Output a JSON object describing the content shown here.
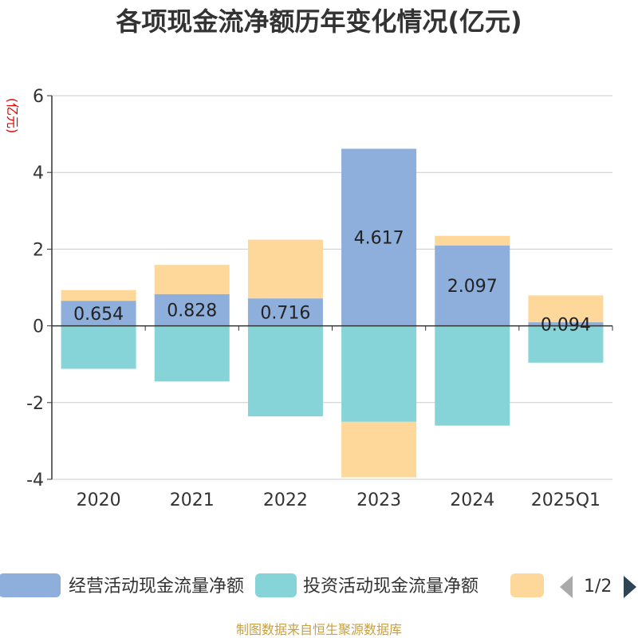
{
  "chart_data": {
    "type": "bar",
    "stacked": true,
    "title": "各项现金流净额历年变化情况(亿元)",
    "ylabel": "(亿元)",
    "categories": [
      "2020",
      "2021",
      "2022",
      "2023",
      "2024",
      "2025Q1"
    ],
    "ylim": [
      -4,
      6
    ],
    "yticks": [
      -4,
      -2,
      0,
      2,
      4,
      6
    ],
    "grid": true,
    "series": [
      {
        "name": "经营活动现金流量净额",
        "color": "#8eaedb",
        "values": [
          0.654,
          0.828,
          0.716,
          4.617,
          2.097,
          0.094
        ],
        "labels": [
          "0.654",
          "0.828",
          "0.716",
          "4.617",
          "2.097",
          "0.094"
        ]
      },
      {
        "name": "投资活动现金流量净额",
        "color": "#86d4d8",
        "values": [
          -1.12,
          -1.45,
          -2.36,
          -2.5,
          -2.6,
          -0.96
        ]
      },
      {
        "name": "",
        "color": "#fdd89a",
        "values": [
          0.28,
          0.76,
          1.53,
          -1.45,
          0.25,
          0.7
        ]
      }
    ],
    "legend": {
      "position": "bottom",
      "page": "1/2"
    },
    "source": "制图数据来自恒生聚源数据库"
  }
}
